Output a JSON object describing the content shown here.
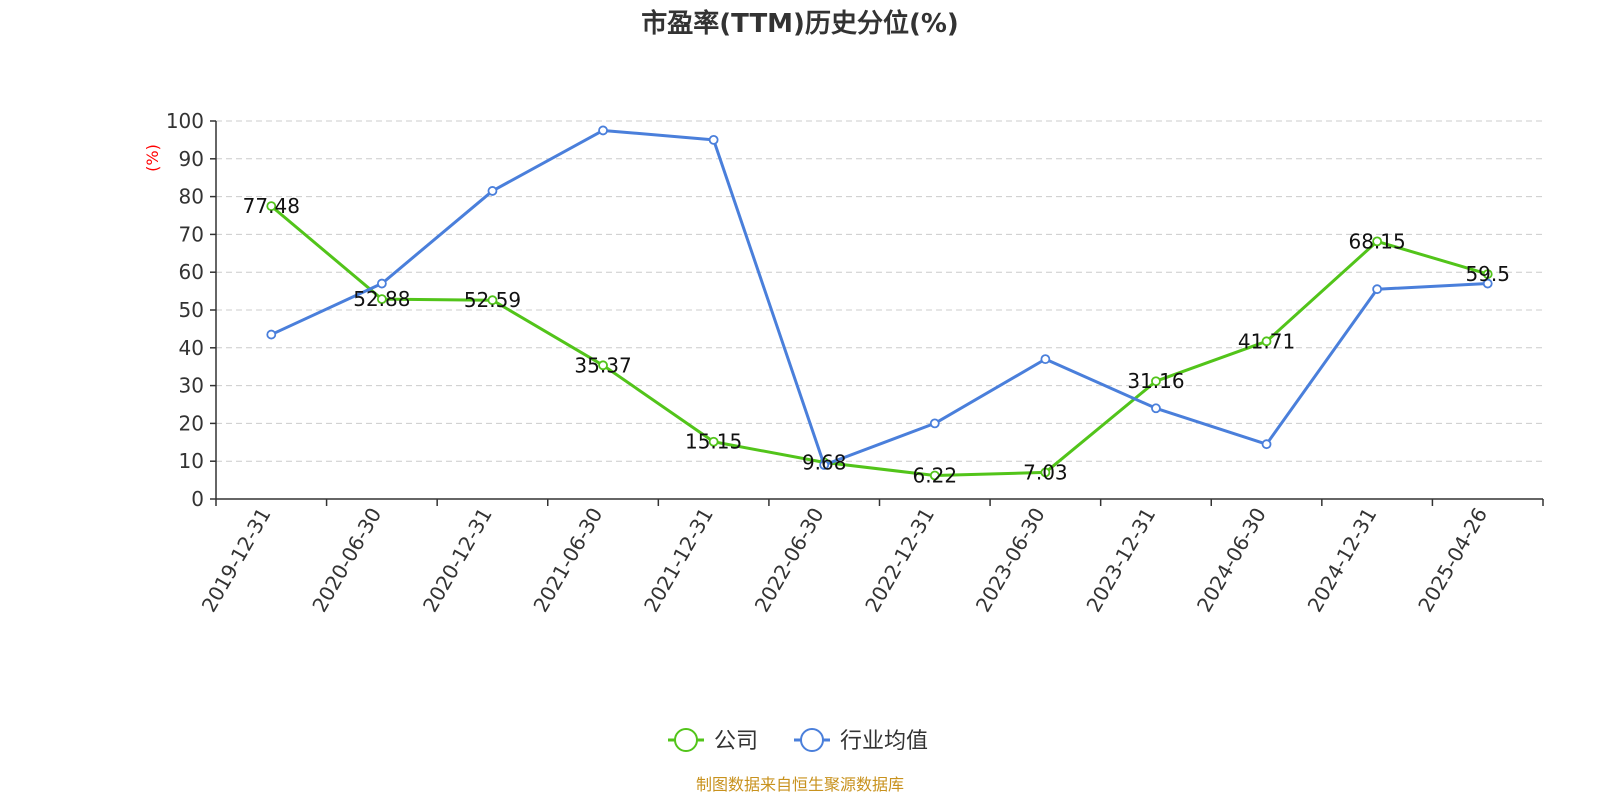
{
  "chart_data": {
    "type": "line",
    "title": "市盈率(TTM)历史分位(%)",
    "ylabel": "(%)",
    "xlabel": "",
    "ylim": [
      0,
      100
    ],
    "yticks": [
      0,
      10,
      20,
      30,
      40,
      50,
      60,
      70,
      80,
      90,
      100
    ],
    "grid": true,
    "legend_position": "bottom",
    "categories": [
      "2019-12-31",
      "2020-06-30",
      "2020-12-31",
      "2021-06-30",
      "2021-12-31",
      "2022-06-30",
      "2022-12-31",
      "2023-06-30",
      "2023-12-31",
      "2024-06-30",
      "2024-12-31",
      "2025-04-26"
    ],
    "series": [
      {
        "name": "公司",
        "color": "#52c41a",
        "show_labels": true,
        "values": [
          77.48,
          52.88,
          52.59,
          35.37,
          15.15,
          9.68,
          6.22,
          7.03,
          31.16,
          41.71,
          68.15,
          59.5
        ],
        "labels": [
          "77.48",
          "52.88",
          "52.59",
          "35.37",
          "15.15",
          "9.68",
          "6.22",
          "7.03",
          "31.16",
          "41.71",
          "68.15",
          "59.5"
        ]
      },
      {
        "name": "行业均值",
        "color": "#4a7fdb",
        "show_labels": false,
        "values": [
          43.5,
          57,
          81.5,
          97.5,
          95,
          9,
          20,
          37,
          24,
          14.5,
          55.5,
          57
        ]
      }
    ]
  },
  "source_text": "制图数据来自恒生聚源数据库",
  "colors": {
    "ylabel": "#ff0000",
    "source": "#c8921e",
    "grid": "#cccccc",
    "axis": "#333333"
  }
}
